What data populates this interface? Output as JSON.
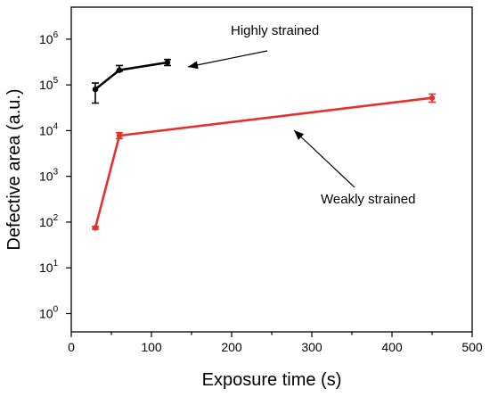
{
  "chart_data": {
    "type": "line",
    "xlabel": "Exposure time (s)",
    "ylabel": "Defective area (a.u.)",
    "xlim": [
      0,
      500
    ],
    "ylim_log10": [
      -0.4,
      6.7
    ],
    "y_scale": "log",
    "x_ticks": [
      0,
      100,
      200,
      300,
      400,
      500
    ],
    "x_tick_labels": [
      "0",
      "100",
      "200",
      "300",
      "400",
      "500"
    ],
    "y_ticks_log10": [
      0,
      1,
      2,
      3,
      4,
      5,
      6
    ],
    "y_tick_labels": [
      {
        "base": "10",
        "exp": "0"
      },
      {
        "base": "10",
        "exp": "1"
      },
      {
        "base": "10",
        "exp": "2"
      },
      {
        "base": "10",
        "exp": "3"
      },
      {
        "base": "10",
        "exp": "4"
      },
      {
        "base": "10",
        "exp": "5"
      },
      {
        "base": "10",
        "exp": "6"
      }
    ],
    "grid": false,
    "series": [
      {
        "label": "Highly strained",
        "color": "#000000",
        "x": [
          30,
          60,
          120
        ],
        "y": [
          80000,
          210000,
          310000
        ],
        "y_err_low": [
          40000,
          200000,
          265000
        ],
        "y_err_high": [
          110000,
          265000,
          360000
        ]
      },
      {
        "label": "Weakly strained",
        "color": "#e8302a",
        "x": [
          30,
          60,
          450
        ],
        "y": [
          75,
          7800,
          52000
        ],
        "y_err_low": [
          70,
          6700,
          42000
        ],
        "y_err_high": [
          80,
          9000,
          63000
        ]
      }
    ],
    "annotations": [
      {
        "text": "Highly strained"
      },
      {
        "text": "Weakly strained"
      }
    ]
  }
}
